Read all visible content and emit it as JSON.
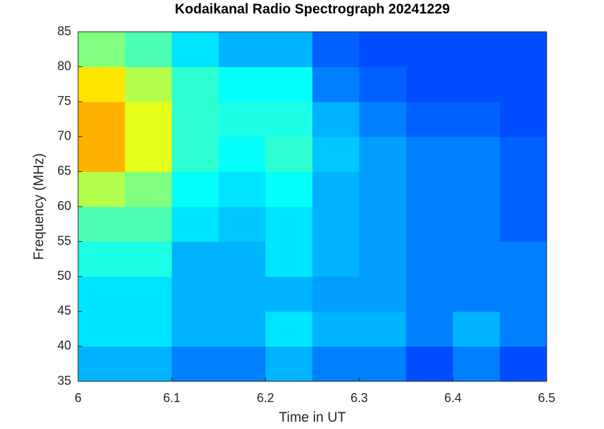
{
  "chart_data": {
    "type": "heatmap",
    "title": "Kodaikanal Radio Spectrograph  20241229",
    "x_label": "Time in UT",
    "y_label": "Frequency (MHz)",
    "x": [
      6,
      6.05,
      6.1,
      6.15,
      6.2,
      6.25,
      6.3,
      6.35,
      6.4,
      6.45,
      6.5
    ],
    "y": [
      35,
      40,
      45,
      50,
      55,
      60,
      65,
      70,
      75,
      80,
      85
    ],
    "z": [
      [
        0.3,
        0.3,
        0.25,
        0.25,
        0.3,
        0.25,
        0.25,
        0.2,
        0.25,
        0.2
      ],
      [
        0.35,
        0.35,
        0.3,
        0.3,
        0.35,
        0.3,
        0.3,
        0.25,
        0.3,
        0.25
      ],
      [
        0.35,
        0.35,
        0.3,
        0.3,
        0.3,
        0.28,
        0.28,
        0.25,
        0.25,
        0.25
      ],
      [
        0.4,
        0.4,
        0.3,
        0.3,
        0.35,
        0.3,
        0.28,
        0.25,
        0.25,
        0.25
      ],
      [
        0.45,
        0.45,
        0.35,
        0.32,
        0.35,
        0.3,
        0.28,
        0.25,
        0.25,
        0.22
      ],
      [
        0.55,
        0.5,
        0.38,
        0.35,
        0.38,
        0.3,
        0.28,
        0.25,
        0.25,
        0.22
      ],
      [
        0.7,
        0.6,
        0.42,
        0.38,
        0.42,
        0.32,
        0.28,
        0.25,
        0.25,
        0.22
      ],
      [
        0.7,
        0.6,
        0.42,
        0.4,
        0.4,
        0.3,
        0.25,
        0.22,
        0.22,
        0.2
      ],
      [
        0.65,
        0.55,
        0.42,
        0.38,
        0.38,
        0.25,
        0.22,
        0.2,
        0.2,
        0.2
      ],
      [
        0.5,
        0.45,
        0.35,
        0.3,
        0.3,
        0.22,
        0.2,
        0.2,
        0.2,
        0.2
      ]
    ],
    "zlim": [
      0,
      1
    ],
    "colormap": "jet",
    "xlim": [
      6,
      6.5
    ],
    "ylim": [
      35,
      85
    ],
    "xticks": [
      6,
      6.1,
      6.2,
      6.3,
      6.4,
      6.5
    ],
    "yticks": [
      35,
      40,
      45,
      50,
      55,
      60,
      65,
      70,
      75,
      80,
      85
    ]
  }
}
